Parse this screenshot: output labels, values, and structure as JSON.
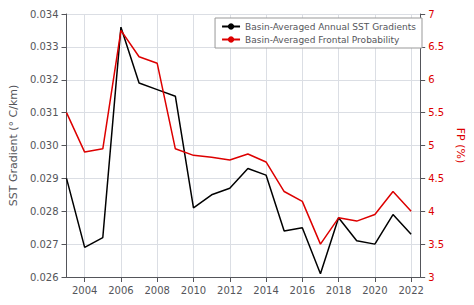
{
  "chart_data": {
    "type": "line",
    "x": [
      2003,
      2004,
      2005,
      2006,
      2007,
      2008,
      2009,
      2010,
      2011,
      2012,
      2013,
      2014,
      2015,
      2016,
      2017,
      2018,
      2019,
      2020,
      2021,
      2022
    ],
    "series": [
      {
        "name": "Basin-Averaged Annual SST Gradients",
        "color": "#000000",
        "values": [
          0.029,
          0.0269,
          0.0272,
          0.0336,
          0.0319,
          0.0317,
          0.0315,
          0.0281,
          0.0285,
          0.0287,
          0.0293,
          0.0291,
          0.0274,
          0.0275,
          0.0261,
          0.0278,
          0.0271,
          0.027,
          0.0279,
          0.0273
        ]
      },
      {
        "name": "Basin-Averaged Frontal Probability",
        "color": "#dd0000",
        "axis": "y2",
        "values": [
          5.5,
          4.9,
          4.95,
          6.75,
          6.35,
          6.25,
          4.95,
          4.85,
          4.82,
          4.78,
          4.87,
          4.75,
          4.3,
          4.15,
          3.5,
          3.9,
          3.85,
          3.95,
          4.3,
          4.0
        ]
      }
    ],
    "ylabel": "SST Gradient (° C/km)",
    "y2label": "FP (%)",
    "xlim": [
      2003.0,
      2022.5
    ],
    "xticks": [
      2004,
      2006,
      2008,
      2010,
      2012,
      2014,
      2016,
      2018,
      2020,
      2022
    ],
    "ylim": [
      0.026,
      0.034
    ],
    "yticks": [
      0.026,
      0.027,
      0.028,
      0.029,
      {
        "value": 0.03,
        "label": "0.030"
      },
      0.031,
      0.032,
      0.033,
      0.034
    ],
    "y2lim": [
      3.0,
      7.0
    ],
    "y2ticks": [
      3,
      3.5,
      4,
      4.5,
      5,
      5.5,
      6,
      6.5,
      7
    ],
    "grid": true,
    "legend": "upper right"
  }
}
